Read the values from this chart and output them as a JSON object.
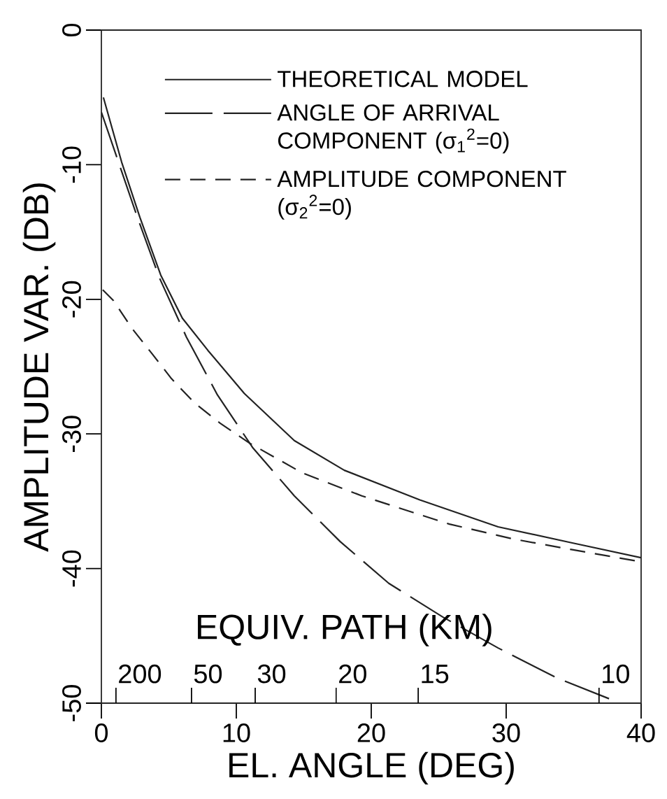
{
  "chart_data": {
    "type": "line",
    "xlabel": "EL. ANGLE (DEG)",
    "ylabel": "AMPLITUDE VAR. (DB)",
    "xlim": [
      0,
      40
    ],
    "ylim": [
      -50,
      0
    ],
    "xticks": [
      0,
      10,
      20,
      30,
      40
    ],
    "yticks": [
      -50,
      -40,
      -30,
      -20,
      -10,
      0
    ],
    "annotations": [
      "EQUIV. PATH (KM)",
      "200",
      "50",
      "30",
      "20",
      "15",
      "10"
    ],
    "legend": "top right",
    "series": [
      {
        "name": "THEORETICAL MODEL",
        "color": "#222222",
        "line_style": "solid",
        "x": [
          0.15,
          1.5,
          2.85,
          4.4,
          6.0,
          7.9,
          10.6,
          14.3,
          18.0,
          23.6,
          29.4,
          34.9,
          40
        ],
        "values": [
          -5.0,
          -9.8,
          -13.9,
          -18.2,
          -21.4,
          -23.8,
          -27.0,
          -30.5,
          -32.7,
          -34.9,
          -36.9,
          -38.1,
          -39.2
        ]
      },
      {
        "name": "ANGLE OF ARRIVAL COMPONENT (σ$_{1}$$^{2}$=0)",
        "color": "#222222",
        "line_style": "dashed",
        "x": [
          0,
          2.7,
          4.3,
          6.3,
          8.6,
          11.2,
          14.3,
          17.7,
          21.3,
          25.3,
          29.4,
          33.7,
          37.7,
          38.3
        ],
        "values": [
          -6.1,
          -14.0,
          -18.4,
          -22.8,
          -27.1,
          -31.0,
          -34.6,
          -38.0,
          -41.1,
          -43.6,
          -45.9,
          -48.1,
          -49.7,
          -50
        ]
      },
      {
        "name": "AMPLITUDE COMPONENT (σ$_{2}$$^{2}$=0)",
        "color": "#222222",
        "line_style": "dashed",
        "x": [
          0.1,
          0.9,
          2.3,
          3.8,
          5.2,
          6.9,
          8.8,
          11.0,
          14.9,
          19.3,
          23.6,
          25.8,
          30.5,
          34.9,
          40
        ],
        "values": [
          -19.3,
          -20.1,
          -22.2,
          -24.1,
          -25.9,
          -27.7,
          -29.2,
          -30.7,
          -32.9,
          -34.6,
          -36.0,
          -36.7,
          -37.8,
          -38.6,
          -39.5
        ]
      }
    ]
  }
}
